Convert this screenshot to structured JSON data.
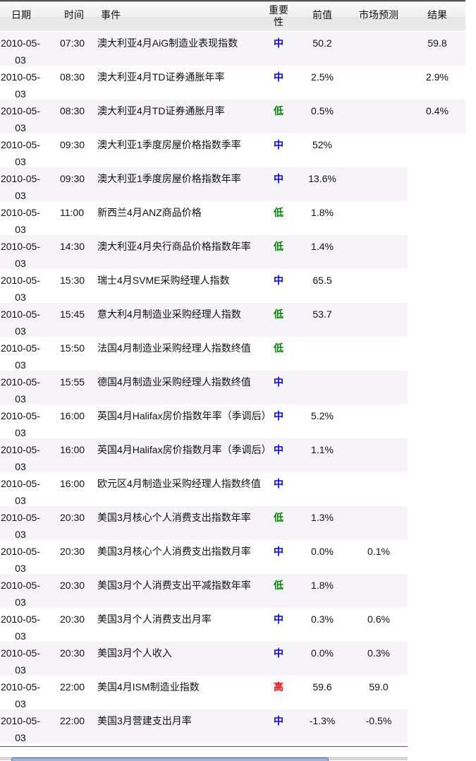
{
  "headers": {
    "date": "日期",
    "time": "时间",
    "event": "事件",
    "importance": "重要性",
    "previous": "前值",
    "forecast": "市场预测",
    "result": "结果"
  },
  "importance_colors": {
    "中": "#0000ff",
    "低": "#008800",
    "高": "#ff0000"
  },
  "row_alt_color": "#f6f4f8",
  "rows": [
    {
      "date1": "2010-05-",
      "date2": "03",
      "time": "07:30",
      "event": "澳大利亚4月AiG制造业表现指数",
      "importance": "中",
      "previous": "50.2",
      "forecast": "",
      "result": "59.8"
    },
    {
      "date1": "2010-05-",
      "date2": "03",
      "time": "08:30",
      "event": "澳大利亚4月TD证券通胀年率",
      "importance": "中",
      "previous": "2.5%",
      "forecast": "",
      "result": "2.9%"
    },
    {
      "date1": "2010-05-",
      "date2": "03",
      "time": "08:30",
      "event": "澳大利亚4月TD证券通胀月率",
      "importance": "低",
      "previous": "0.5%",
      "forecast": "",
      "result": "0.4%"
    },
    {
      "date1": "2010-05-",
      "date2": "03",
      "time": "09:30",
      "event": "澳大利亚1季度房屋价格指数季率",
      "importance": "中",
      "previous": "52%",
      "forecast": "",
      "result": ""
    },
    {
      "date1": "2010-05-",
      "date2": "03",
      "time": "09:30",
      "event": "澳大利亚1季度房屋价格指数年率",
      "importance": "中",
      "previous": "13.6%",
      "forecast": "",
      "result": ""
    },
    {
      "date1": "2010-05-",
      "date2": "03",
      "time": "11:00",
      "event": "新西兰4月ANZ商品价格",
      "importance": "低",
      "previous": "1.8%",
      "forecast": "",
      "result": ""
    },
    {
      "date1": "2010-05-",
      "date2": "03",
      "time": "14:30",
      "event": "澳大利亚4月央行商品价格指数年率",
      "importance": "低",
      "previous": "1.4%",
      "forecast": "",
      "result": ""
    },
    {
      "date1": "2010-05-",
      "date2": "03",
      "time": "15:30",
      "event": "瑞士4月SVME采购经理人指数",
      "importance": "中",
      "previous": "65.5",
      "forecast": "",
      "result": ""
    },
    {
      "date1": "2010-05-",
      "date2": "03",
      "time": "15:45",
      "event": "意大利4月制造业采购经理人指数",
      "importance": "低",
      "previous": "53.7",
      "forecast": "",
      "result": ""
    },
    {
      "date1": "2010-05-",
      "date2": "03",
      "time": "15:50",
      "event": "法国4月制造业采购经理人指数终值",
      "importance": "低",
      "previous": "",
      "forecast": "",
      "result": ""
    },
    {
      "date1": "2010-05-",
      "date2": "03",
      "time": "15:55",
      "event": "德国4月制造业采购经理人指数终值",
      "importance": "中",
      "previous": "",
      "forecast": "",
      "result": ""
    },
    {
      "date1": "2010-05-",
      "date2": "03",
      "time": "16:00",
      "event": "英国4月Halifax房价指数年率（季调后）",
      "importance": "中",
      "previous": "5.2%",
      "forecast": "",
      "result": ""
    },
    {
      "date1": "2010-05-",
      "date2": "03",
      "time": "16:00",
      "event": "英国4月Halifax房价指数月率（季调后）",
      "importance": "中",
      "previous": "1.1%",
      "forecast": "",
      "result": ""
    },
    {
      "date1": "2010-05-",
      "date2": "03",
      "time": "16:00",
      "event": "欧元区4月制造业采购经理人指数终值",
      "importance": "中",
      "previous": "",
      "forecast": "",
      "result": ""
    },
    {
      "date1": "2010-05-",
      "date2": "03",
      "time": "20:30",
      "event": "美国3月核心个人消费支出指数年率",
      "importance": "低",
      "previous": "1.3%",
      "forecast": "",
      "result": ""
    },
    {
      "date1": "2010-05-",
      "date2": "03",
      "time": "20:30",
      "event": "美国3月核心个人消费支出指数月率",
      "importance": "中",
      "previous": "0.0%",
      "forecast": "0.1%",
      "result": ""
    },
    {
      "date1": "2010-05-",
      "date2": "03",
      "time": "20:30",
      "event": "美国3月个人消费支出平减指数年率",
      "importance": "低",
      "previous": "1.8%",
      "forecast": "",
      "result": ""
    },
    {
      "date1": "2010-05-",
      "date2": "03",
      "time": "20:30",
      "event": "美国3月个人消费支出月率",
      "importance": "中",
      "previous": "0.3%",
      "forecast": "0.6%",
      "result": ""
    },
    {
      "date1": "2010-05-",
      "date2": "03",
      "time": "20:30",
      "event": "美国3月个人收入",
      "importance": "中",
      "previous": "0.0%",
      "forecast": "0.3%",
      "result": ""
    },
    {
      "date1": "2010-05-",
      "date2": "03",
      "time": "22:00",
      "event": "美国4月ISM制造业指数",
      "importance": "高",
      "previous": "59.6",
      "forecast": "59.0",
      "result": ""
    },
    {
      "date1": "2010-05-",
      "date2": "03",
      "time": "22:00",
      "event": "美国3月营建支出月率",
      "importance": "中",
      "previous": "-1.3%",
      "forecast": "-0.5%",
      "result": ""
    }
  ]
}
